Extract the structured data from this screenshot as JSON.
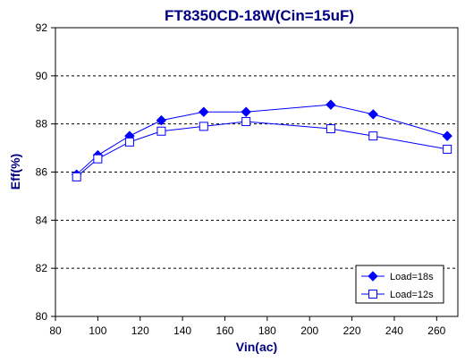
{
  "chart_data": {
    "type": "line",
    "title": "FT8350CD-18W(Cin=15uF)",
    "xlabel": "Vin(ac)",
    "ylabel": "Eff(%)",
    "xlim": [
      80,
      270
    ],
    "ylim": [
      80,
      92
    ],
    "xticks": [
      80,
      100,
      120,
      140,
      160,
      180,
      200,
      220,
      240,
      260
    ],
    "yticks": [
      80,
      82,
      84,
      86,
      88,
      90,
      92
    ],
    "grid": "horizontal-dashed",
    "legend_position": "bottom-right",
    "colors": {
      "series": "#0000ff",
      "frame": "#000000",
      "grid": "#000000",
      "title": "#000080"
    },
    "series": [
      {
        "name": "Load=18s",
        "marker": "filled-diamond",
        "x": [
          90,
          100,
          115,
          130,
          150,
          170,
          210,
          230,
          265
        ],
        "y": [
          85.9,
          86.7,
          87.5,
          88.15,
          88.5,
          88.5,
          88.8,
          88.4,
          87.5
        ]
      },
      {
        "name": "Load=12s",
        "marker": "hollow-square",
        "x": [
          90,
          100,
          115,
          130,
          150,
          170,
          210,
          230,
          265
        ],
        "y": [
          85.8,
          86.55,
          87.25,
          87.7,
          87.9,
          88.1,
          87.8,
          87.5,
          86.95
        ]
      }
    ]
  }
}
